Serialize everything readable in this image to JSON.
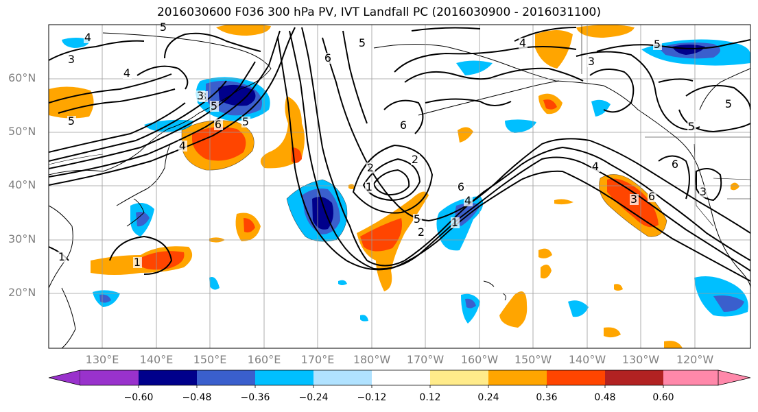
{
  "title": "2016030600 F036 300 hPa PV, IVT Landfall PC (2016030900 - 2016031100)",
  "latitude_labels": [
    "60°N",
    "50°N",
    "40°N",
    "30°N",
    "20°N"
  ],
  "longitude_labels": [
    "130°E",
    "140°E",
    "150°E",
    "160°E",
    "170°E",
    "180°W",
    "170°W",
    "160°W",
    "150°W",
    "140°W",
    "130°W",
    "120°W"
  ],
  "colorbar": {
    "ticks": [
      "−0.60",
      "−0.48",
      "−0.36",
      "−0.24",
      "−0.12",
      "0.12",
      "0.24",
      "0.36",
      "0.48",
      "0.60"
    ],
    "colors": [
      "#9932cc",
      "#00008b",
      "#3a5fcd",
      "#00bfff",
      "#b0e2ff",
      "#ffffff",
      "#ffeb8a",
      "#ffa500",
      "#ff4500",
      "#b22222",
      "#ff88aa"
    ]
  },
  "contour_labels": [
    "5",
    "4",
    "3",
    "4",
    "5",
    "6",
    "5",
    "4",
    "3",
    "6",
    "5",
    "2",
    "1",
    "2",
    "5",
    "6",
    "4",
    "1",
    "2",
    "3",
    "5",
    "4",
    "3",
    "5",
    "6",
    "6",
    "3",
    "1",
    "1",
    "4",
    "3",
    "5",
    "6",
    "5"
  ]
}
